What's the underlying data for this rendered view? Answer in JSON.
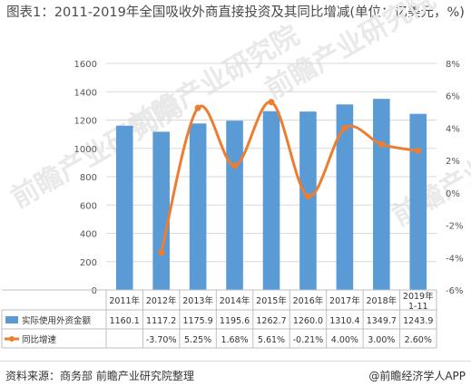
{
  "title": "图表1：2011-2019年全国吸收外商直接投资及其同比增减(单位：亿美元，%)",
  "footer": {
    "source": "资料来源：商务部 前瞻产业研究院整理",
    "brand": "@前瞻经济学人APP"
  },
  "watermark": "前瞻产业研究院",
  "colors": {
    "bar": "#5b9bd5",
    "line": "#ed7d31",
    "grid": "#d9d9d9",
    "axis_text": "#555555"
  },
  "chart_data": {
    "type": "bar+line",
    "title": "2011-2019年全国吸收外商直接投资及其同比增减(单位：亿美元，%)",
    "categories": [
      "2011年",
      "2012年",
      "2013年",
      "2014年",
      "2015年",
      "2016年",
      "2017年",
      "2018年",
      "2019年\n1-11"
    ],
    "y_left": {
      "min": 0,
      "max": 1600,
      "ticks": [
        "0",
        "200",
        "400",
        "600",
        "800",
        "1000",
        "1200",
        "1400",
        "1600"
      ]
    },
    "y_right": {
      "min": -6,
      "max": 8,
      "ticks": [
        "-6%",
        "-4%",
        "-2%",
        "0%",
        "2%",
        "4%",
        "6%",
        "8%"
      ]
    },
    "grid": true,
    "legend_position": "bottom-table",
    "series": [
      {
        "name": "实际使用外资金额",
        "type": "bar",
        "axis": "left",
        "values": [
          1160.1,
          1117.2,
          1175.9,
          1195.6,
          1262.7,
          1260.0,
          1310.4,
          1349.7,
          1243.9
        ],
        "labels": [
          "1160.1",
          "1117.2",
          "1175.9",
          "1195.6",
          "1262.7",
          "1260.0",
          "1310.4",
          "1349.7",
          "1243.9"
        ]
      },
      {
        "name": "同比增速",
        "type": "line",
        "axis": "right",
        "values": [
          null,
          -3.7,
          5.25,
          1.68,
          5.61,
          -0.21,
          4.0,
          3.0,
          2.6
        ],
        "labels": [
          "",
          "-3.70%",
          "5.25%",
          "1.68%",
          "5.61%",
          "-0.21%",
          "4.00%",
          "3.00%",
          "2.60%"
        ]
      }
    ]
  }
}
